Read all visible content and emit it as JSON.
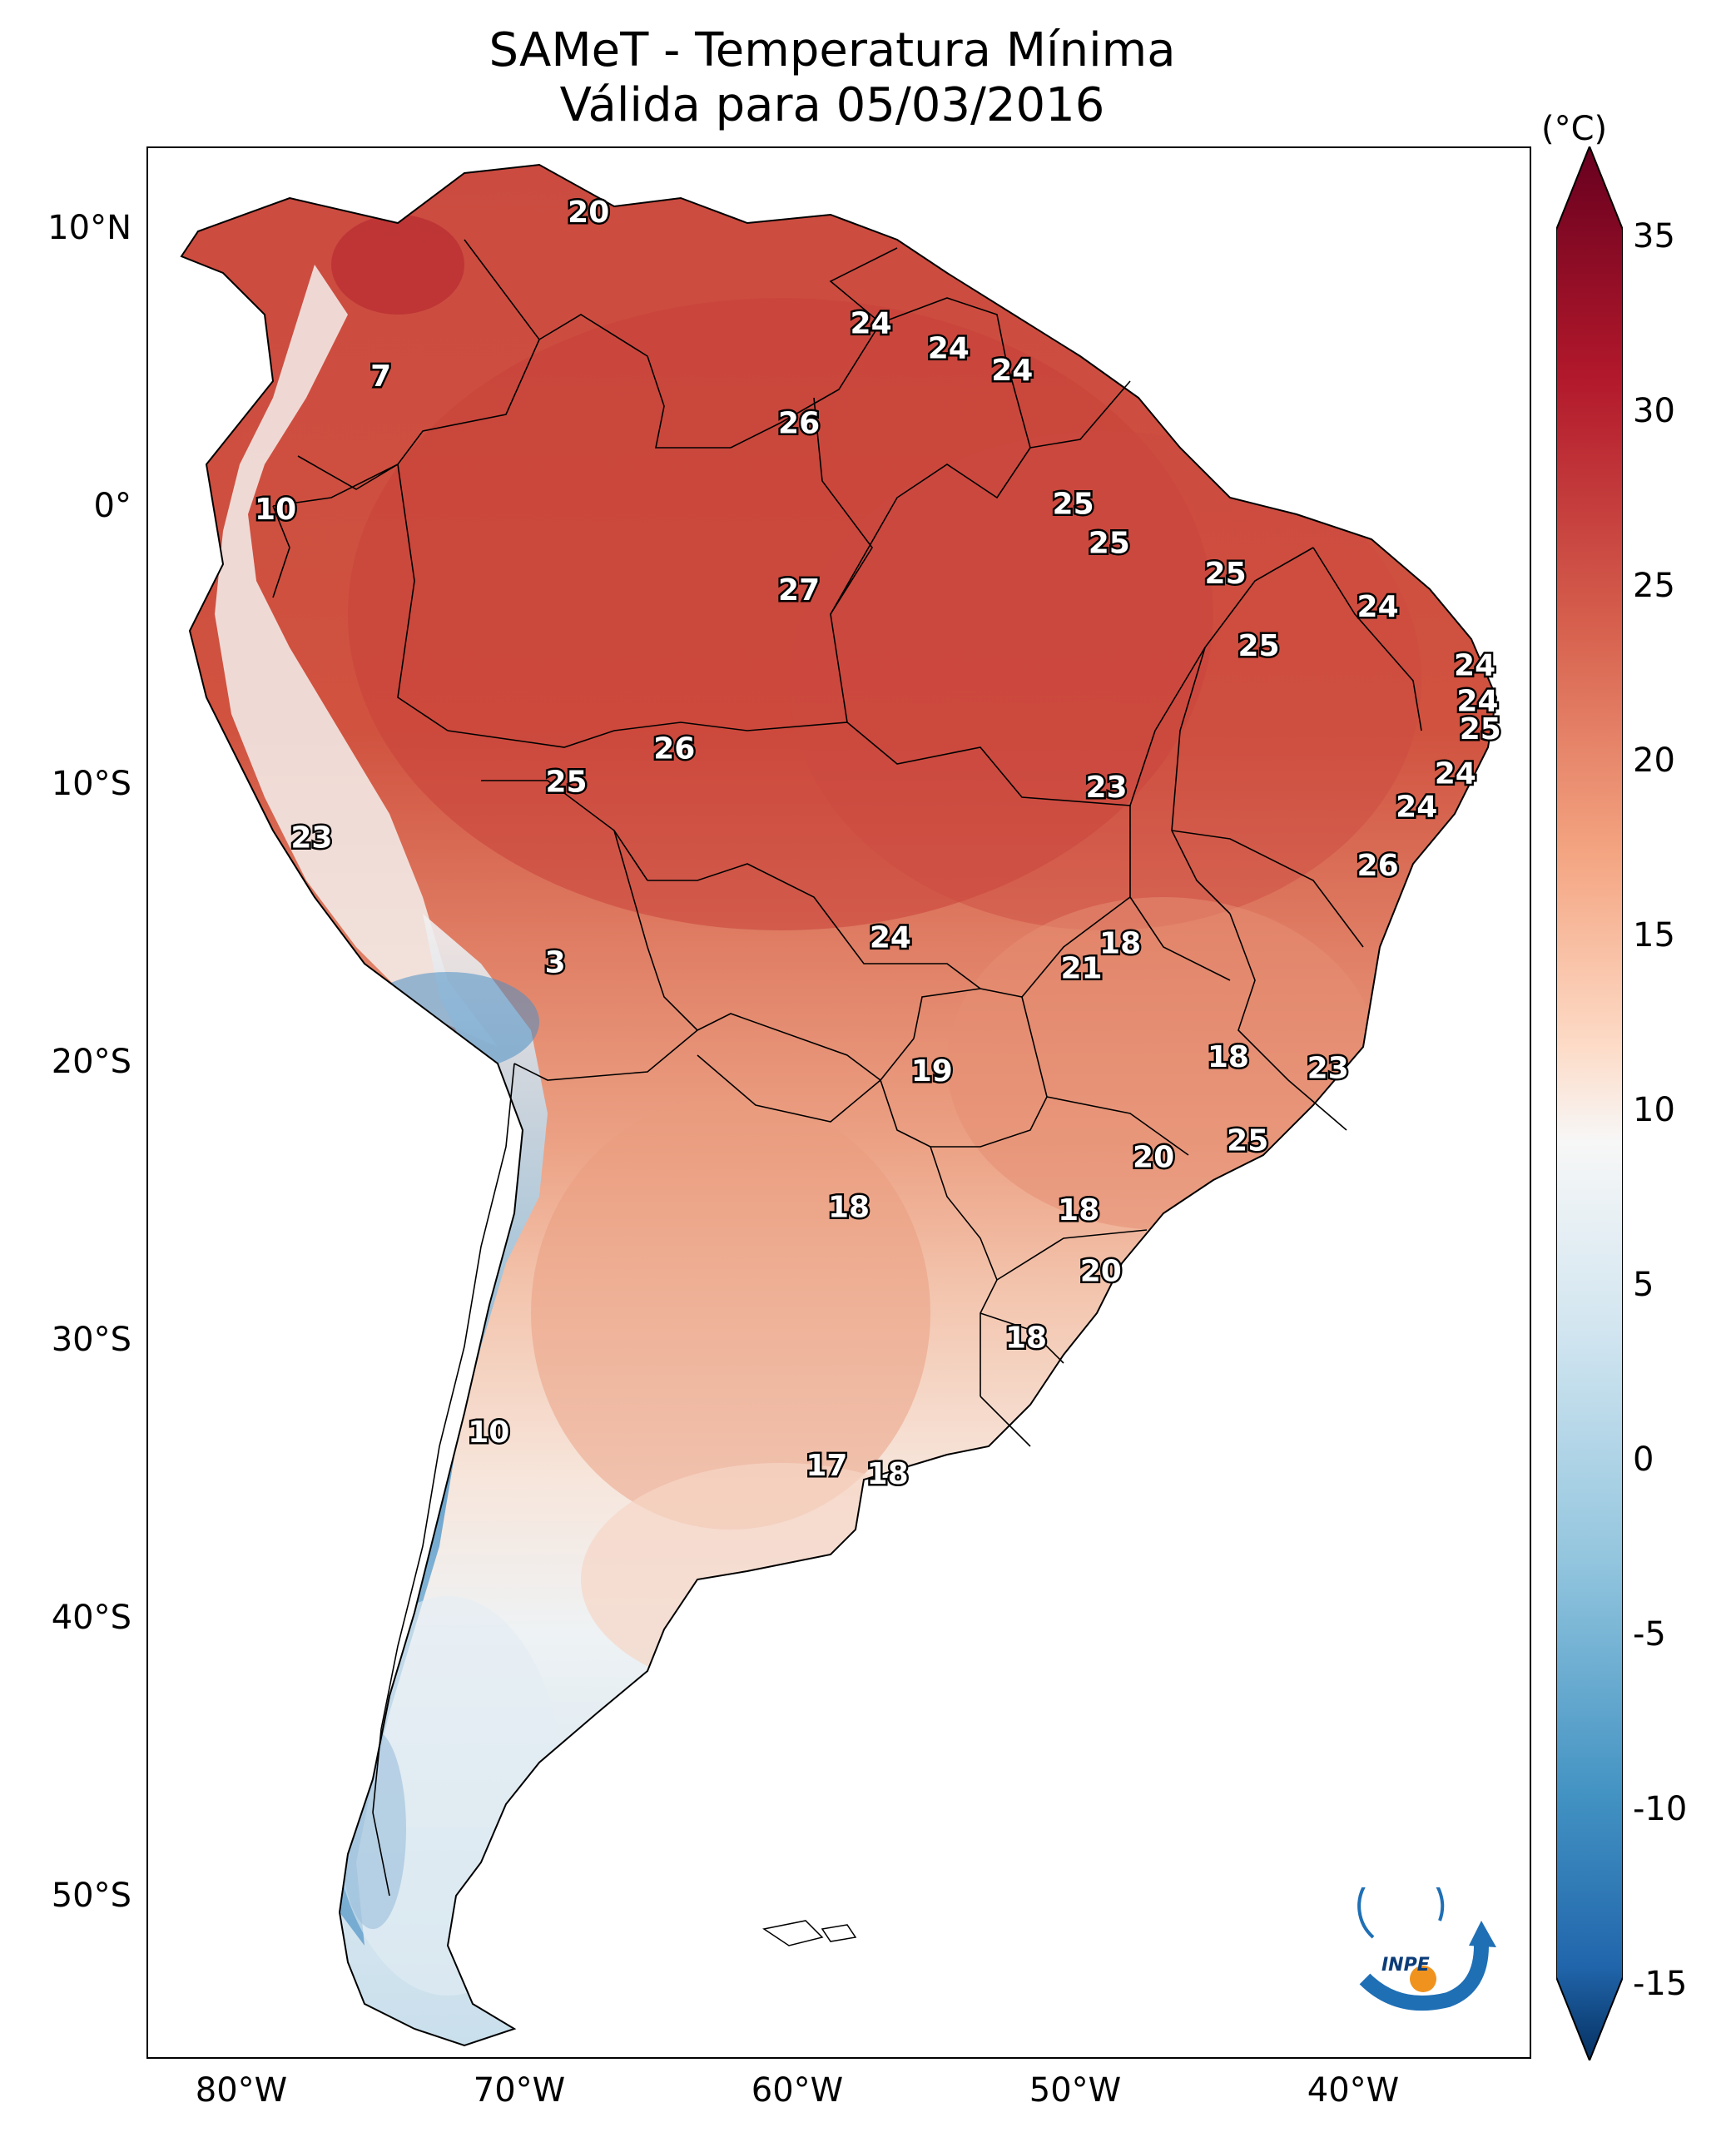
{
  "title": {
    "line1": "SAMeT - Temperatura Mínima",
    "line2": "Válida para 05/03/2016"
  },
  "axes": {
    "lon_ticks": [
      "80°W",
      "70°W",
      "60°W",
      "50°W",
      "40°W"
    ],
    "lat_ticks": [
      "10°N",
      "0°",
      "10°S",
      "20°S",
      "30°S",
      "40°S",
      "50°S"
    ]
  },
  "colorbar": {
    "unit": "(°C)",
    "ticks": [
      "35",
      "30",
      "25",
      "20",
      "15",
      "10",
      "5",
      "0",
      "-5",
      "-10",
      "-15"
    ],
    "range": [
      -15,
      35
    ],
    "extend": "both",
    "colormap": "RdBu_r"
  },
  "colors": {
    "hot": "#c8413a",
    "warm": "#e58a6c",
    "mild": "#f5c9b2",
    "neutral": "#f7f2ef",
    "cool": "#cfe3ef",
    "cold": "#4f95c7",
    "inpe_blue": "#1f6fb5",
    "inpe_orange": "#f0931e"
  },
  "logo": {
    "text": "INPE"
  },
  "station_values": [
    {
      "value": "20",
      "lon": -67.0,
      "lat": 10.5
    },
    {
      "value": "7",
      "lon": -74.5,
      "lat": 4.6
    },
    {
      "value": "24",
      "lon": -56.8,
      "lat": 6.5
    },
    {
      "value": "24",
      "lon": -54.0,
      "lat": 5.6
    },
    {
      "value": "24",
      "lon": -51.7,
      "lat": 4.8
    },
    {
      "value": "26",
      "lon": -59.4,
      "lat": 2.9
    },
    {
      "value": "10",
      "lon": -78.3,
      "lat": -0.2
    },
    {
      "value": "25",
      "lon": -49.5,
      "lat": 0.0
    },
    {
      "value": "25",
      "lon": -48.2,
      "lat": -1.4
    },
    {
      "value": "25",
      "lon": -44.0,
      "lat": -2.5
    },
    {
      "value": "24",
      "lon": -38.5,
      "lat": -3.7
    },
    {
      "value": "27",
      "lon": -59.4,
      "lat": -3.1
    },
    {
      "value": "25",
      "lon": -42.8,
      "lat": -5.1
    },
    {
      "value": "24",
      "lon": -35.0,
      "lat": -5.8
    },
    {
      "value": "24",
      "lon": -34.9,
      "lat": -7.1
    },
    {
      "value": "25",
      "lon": -34.8,
      "lat": -8.1
    },
    {
      "value": "26",
      "lon": -63.9,
      "lat": -8.8
    },
    {
      "value": "25",
      "lon": -67.8,
      "lat": -10.0
    },
    {
      "value": "23",
      "lon": -48.3,
      "lat": -10.2
    },
    {
      "value": "24",
      "lon": -35.7,
      "lat": -9.7
    },
    {
      "value": "24",
      "lon": -37.1,
      "lat": -10.9
    },
    {
      "value": "23",
      "lon": -77.0,
      "lat": -12.0
    },
    {
      "value": "26",
      "lon": -38.5,
      "lat": -13.0
    },
    {
      "value": "24",
      "lon": -56.1,
      "lat": -15.6
    },
    {
      "value": "18",
      "lon": -47.8,
      "lat": -15.8
    },
    {
      "value": "3",
      "lon": -68.2,
      "lat": -16.5
    },
    {
      "value": "21",
      "lon": -49.2,
      "lat": -16.7
    },
    {
      "value": "18",
      "lon": -43.9,
      "lat": -19.9
    },
    {
      "value": "23",
      "lon": -40.3,
      "lat": -20.3
    },
    {
      "value": "19",
      "lon": -54.6,
      "lat": -20.4
    },
    {
      "value": "25",
      "lon": -43.2,
      "lat": -22.9
    },
    {
      "value": "20",
      "lon": -46.6,
      "lat": -23.5
    },
    {
      "value": "18",
      "lon": -57.6,
      "lat": -25.3
    },
    {
      "value": "18",
      "lon": -49.3,
      "lat": -25.4
    },
    {
      "value": "20",
      "lon": -48.5,
      "lat": -27.6
    },
    {
      "value": "18",
      "lon": -51.2,
      "lat": -30.0
    },
    {
      "value": "10",
      "lon": -70.6,
      "lat": -33.4
    },
    {
      "value": "17",
      "lon": -58.4,
      "lat": -34.6
    },
    {
      "value": "18",
      "lon": -56.2,
      "lat": -34.9
    }
  ]
}
